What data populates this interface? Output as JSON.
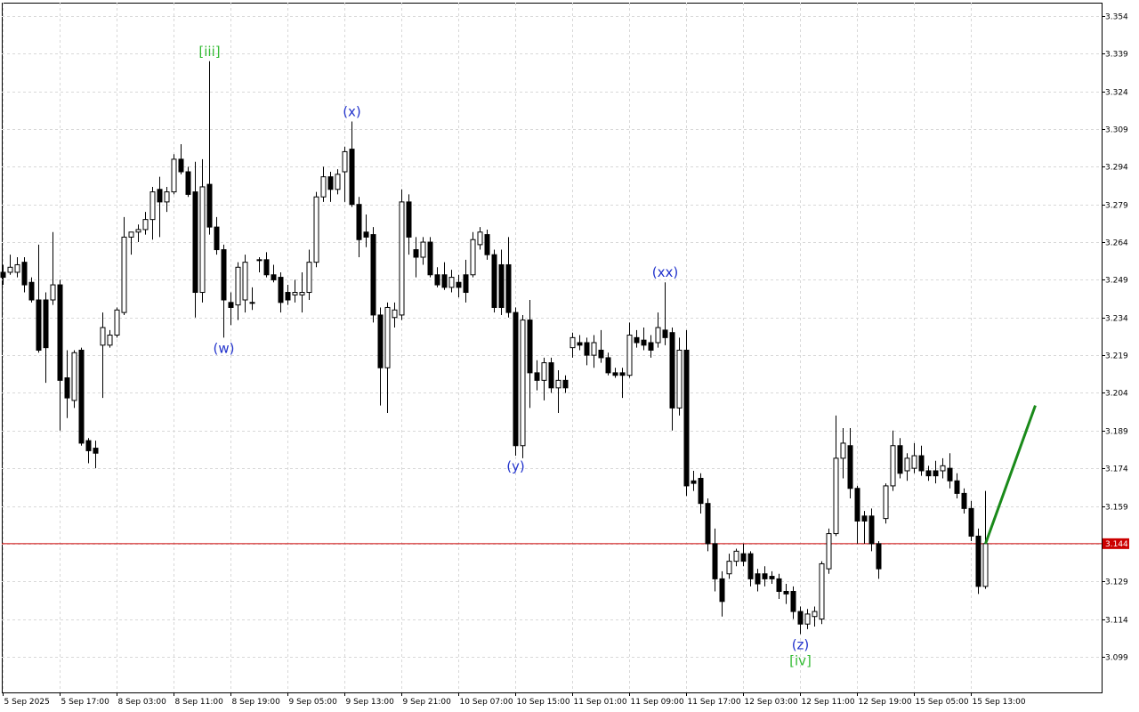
{
  "chart_data": {
    "type": "candlestick",
    "categories": [
      "5 Sep 2025",
      null,
      null,
      null,
      null,
      null,
      null,
      null,
      "5 Sep 17:00",
      null,
      null,
      null,
      null,
      null,
      null,
      null,
      "8 Sep 03:00",
      null,
      null,
      null,
      null,
      null,
      null,
      null,
      "8 Sep 11:00",
      null,
      null,
      null,
      null,
      null,
      null,
      null,
      "8 Sep 19:00",
      null,
      null,
      null,
      null,
      null,
      null,
      null,
      "9 Sep 05:00",
      null,
      null,
      null,
      null,
      null,
      null,
      null,
      "9 Sep 13:00",
      null,
      null,
      null,
      null,
      null,
      null,
      null,
      "9 Sep 21:00",
      null,
      null,
      null,
      null,
      null,
      null,
      null,
      "10 Sep 07:00",
      null,
      null,
      null,
      null,
      null,
      null,
      null,
      "10 Sep 15:00",
      null,
      null,
      null,
      null,
      null,
      null,
      null,
      "11 Sep 01:00",
      null,
      null,
      null,
      null,
      null,
      null,
      null,
      "11 Sep 09:00",
      null,
      null,
      null,
      null,
      null,
      null,
      null,
      "11 Sep 17:00",
      null,
      null,
      null,
      null,
      null,
      null,
      null,
      "12 Sep 03:00",
      null,
      null,
      null,
      null,
      null,
      null,
      null,
      "12 Sep 11:00",
      null,
      null,
      null,
      null,
      null,
      null,
      null,
      "12 Sep 19:00",
      null,
      null,
      null,
      null,
      null,
      null,
      null,
      "15 Sep 05:00",
      null,
      null,
      null,
      null,
      null,
      null,
      null,
      "15 Sep 13:00",
      null,
      null
    ],
    "candles": [
      [
        3.252,
        3.255,
        3.247,
        3.25
      ],
      [
        3.252,
        3.259,
        3.251,
        3.254
      ],
      [
        3.252,
        3.258,
        3.25,
        3.255
      ],
      [
        3.256,
        3.258,
        3.244,
        3.247
      ],
      [
        3.248,
        3.25,
        3.24,
        3.241
      ],
      [
        3.241,
        3.263,
        3.22,
        3.221
      ],
      [
        3.241,
        3.244,
        3.208,
        3.222
      ],
      [
        3.241,
        3.268,
        3.239,
        3.247
      ],
      [
        3.247,
        3.249,
        3.189,
        3.209
      ],
      [
        3.21,
        3.221,
        3.194,
        3.202
      ],
      [
        3.201,
        3.221,
        3.198,
        3.22
      ],
      [
        3.221,
        3.222,
        3.183,
        3.184
      ],
      [
        3.185,
        3.186,
        3.176,
        3.181
      ],
      [
        3.182,
        3.185,
        3.174,
        3.18
      ],
      [
        3.223,
        3.236,
        3.202,
        3.23
      ],
      [
        3.223,
        3.229,
        3.222,
        3.227
      ],
      [
        3.227,
        3.238,
        3.226,
        3.237
      ],
      [
        3.236,
        3.274,
        3.235,
        3.266
      ],
      [
        3.266,
        3.268,
        3.259,
        3.268
      ],
      [
        3.268,
        3.271,
        3.264,
        3.269
      ],
      [
        3.269,
        3.276,
        3.267,
        3.273
      ],
      [
        3.273,
        3.286,
        3.265,
        3.284
      ],
      [
        3.285,
        3.29,
        3.266,
        3.28
      ],
      [
        3.28,
        3.286,
        3.276,
        3.284
      ],
      [
        3.284,
        3.299,
        3.283,
        3.297
      ],
      [
        3.297,
        3.303,
        3.291,
        3.292
      ],
      [
        3.292,
        3.294,
        3.282,
        3.283
      ],
      [
        3.284,
        3.296,
        3.234,
        3.244
      ],
      [
        3.244,
        3.297,
        3.24,
        3.286
      ],
      [
        3.287,
        3.336,
        3.267,
        3.27
      ],
      [
        3.27,
        3.274,
        3.259,
        3.261
      ],
      [
        3.261,
        3.263,
        3.226,
        3.241
      ],
      [
        3.24,
        3.244,
        3.231,
        3.238
      ],
      [
        3.239,
        3.256,
        3.233,
        3.254
      ],
      [
        3.241,
        3.259,
        3.236,
        3.256
      ],
      [
        3.24,
        3.246,
        3.237,
        3.24
      ],
      [
        3.257,
        3.258,
        3.252,
        3.257
      ],
      [
        3.257,
        3.26,
        3.25,
        3.251
      ],
      [
        3.251,
        3.255,
        3.248,
        3.249
      ],
      [
        3.25,
        3.252,
        3.236,
        3.24
      ],
      [
        3.244,
        3.247,
        3.239,
        3.241
      ],
      [
        3.243,
        3.249,
        3.24,
        3.244
      ],
      [
        3.243,
        3.252,
        3.236,
        3.244
      ],
      [
        3.244,
        3.261,
        3.241,
        3.256
      ],
      [
        3.256,
        3.284,
        3.254,
        3.282
      ],
      [
        3.282,
        3.294,
        3.28,
        3.29
      ],
      [
        3.29,
        3.292,
        3.28,
        3.285
      ],
      [
        3.285,
        3.293,
        3.283,
        3.291
      ],
      [
        3.292,
        3.302,
        3.28,
        3.3
      ],
      [
        3.301,
        3.312,
        3.278,
        3.279
      ],
      [
        3.279,
        3.282,
        3.258,
        3.265
      ],
      [
        3.268,
        3.275,
        3.262,
        3.266
      ],
      [
        3.267,
        3.27,
        3.232,
        3.235
      ],
      [
        3.235,
        3.238,
        3.199,
        3.214
      ],
      [
        3.214,
        3.24,
        3.196,
        3.238
      ],
      [
        3.234,
        3.24,
        3.23,
        3.237
      ],
      [
        3.235,
        3.285,
        3.233,
        3.28
      ],
      [
        3.28,
        3.283,
        3.259,
        3.266
      ],
      [
        3.261,
        3.266,
        3.25,
        3.258
      ],
      [
        3.258,
        3.266,
        3.255,
        3.264
      ],
      [
        3.264,
        3.266,
        3.25,
        3.251
      ],
      [
        3.251,
        3.254,
        3.246,
        3.247
      ],
      [
        3.251,
        3.256,
        3.245,
        3.246
      ],
      [
        3.246,
        3.253,
        3.244,
        3.25
      ],
      [
        3.248,
        3.251,
        3.242,
        3.246
      ],
      [
        3.251,
        3.257,
        3.24,
        3.244
      ],
      [
        3.251,
        3.268,
        3.25,
        3.265
      ],
      [
        3.263,
        3.27,
        3.261,
        3.268
      ],
      [
        3.267,
        3.269,
        3.257,
        3.259
      ],
      [
        3.259,
        3.261,
        3.236,
        3.238
      ],
      [
        3.255,
        3.261,
        3.235,
        3.238
      ],
      [
        3.255,
        3.266,
        3.234,
        3.236
      ],
      [
        3.236,
        3.238,
        3.179,
        3.183
      ],
      [
        3.183,
        3.235,
        3.178,
        3.233
      ],
      [
        3.233,
        3.241,
        3.198,
        3.212
      ],
      [
        3.212,
        3.217,
        3.205,
        3.209
      ],
      [
        3.209,
        3.218,
        3.201,
        3.216
      ],
      [
        3.216,
        3.218,
        3.204,
        3.206
      ],
      [
        3.206,
        3.213,
        3.196,
        3.209
      ],
      [
        3.209,
        3.211,
        3.204,
        3.206
      ],
      [
        3.222,
        3.228,
        3.218,
        3.226
      ],
      [
        3.224,
        3.227,
        3.221,
        3.223
      ],
      [
        3.224,
        3.226,
        3.215,
        3.219
      ],
      [
        3.219,
        3.227,
        3.214,
        3.224
      ],
      [
        3.221,
        3.229,
        3.216,
        3.218
      ],
      [
        3.218,
        3.22,
        3.211,
        3.212
      ],
      [
        3.212,
        3.214,
        3.21,
        3.211
      ],
      [
        3.212,
        3.214,
        3.202,
        3.211
      ],
      [
        3.211,
        3.232,
        3.21,
        3.227
      ],
      [
        3.226,
        3.229,
        3.222,
        3.224
      ],
      [
        3.225,
        3.23,
        3.221,
        3.223
      ],
      [
        3.224,
        3.227,
        3.218,
        3.221
      ],
      [
        3.224,
        3.236,
        3.222,
        3.23
      ],
      [
        3.229,
        3.248,
        3.223,
        3.226
      ],
      [
        3.228,
        3.23,
        3.189,
        3.198
      ],
      [
        3.198,
        3.226,
        3.195,
        3.221
      ],
      [
        3.221,
        3.229,
        3.163,
        3.167
      ],
      [
        3.169,
        3.173,
        3.165,
        3.168
      ],
      [
        3.17,
        3.172,
        3.156,
        3.16
      ],
      [
        3.16,
        3.162,
        3.141,
        3.144
      ],
      [
        3.144,
        3.15,
        3.125,
        3.13
      ],
      [
        3.13,
        3.133,
        3.115,
        3.121
      ],
      [
        3.132,
        3.14,
        3.13,
        3.137
      ],
      [
        3.137,
        3.142,
        3.135,
        3.141
      ],
      [
        3.14,
        3.144,
        3.135,
        3.137
      ],
      [
        3.14,
        3.141,
        3.127,
        3.13
      ],
      [
        3.132,
        3.134,
        3.125,
        3.128
      ],
      [
        3.132,
        3.135,
        3.127,
        3.13
      ],
      [
        3.131,
        3.133,
        3.128,
        3.13
      ],
      [
        3.13,
        3.132,
        3.122,
        3.125
      ],
      [
        3.125,
        3.128,
        3.12,
        3.124
      ],
      [
        3.125,
        3.127,
        3.114,
        3.117
      ],
      [
        3.117,
        3.119,
        3.108,
        3.112
      ],
      [
        3.112,
        3.118,
        3.11,
        3.116
      ],
      [
        3.115,
        3.119,
        3.111,
        3.117
      ],
      [
        3.114,
        3.137,
        3.112,
        3.136
      ],
      [
        3.134,
        3.15,
        3.132,
        3.148
      ],
      [
        3.148,
        3.195,
        3.147,
        3.178
      ],
      [
        3.178,
        3.19,
        3.17,
        3.184
      ],
      [
        3.183,
        3.19,
        3.162,
        3.166
      ],
      [
        3.166,
        3.167,
        3.144,
        3.153
      ],
      [
        3.155,
        3.157,
        3.144,
        3.153
      ],
      [
        3.155,
        3.158,
        3.141,
        3.144
      ],
      [
        3.144,
        3.145,
        3.13,
        3.134
      ],
      [
        3.154,
        3.168,
        3.152,
        3.167
      ],
      [
        3.167,
        3.189,
        3.165,
        3.183
      ],
      [
        3.183,
        3.186,
        3.17,
        3.172
      ],
      [
        3.173,
        3.18,
        3.169,
        3.178
      ],
      [
        3.174,
        3.184,
        3.172,
        3.179
      ],
      [
        3.179,
        3.183,
        3.171,
        3.173
      ],
      [
        3.173,
        3.175,
        3.169,
        3.171
      ],
      [
        3.173,
        3.177,
        3.168,
        3.171
      ],
      [
        3.173,
        3.178,
        3.17,
        3.175
      ],
      [
        3.174,
        3.18,
        3.166,
        3.169
      ],
      [
        3.169,
        3.172,
        3.162,
        3.164
      ],
      [
        3.164,
        3.166,
        3.156,
        3.158
      ],
      [
        3.158,
        3.161,
        3.145,
        3.147
      ],
      [
        3.147,
        3.15,
        3.124,
        3.127
      ],
      [
        3.127,
        3.165,
        3.126,
        3.144
      ]
    ],
    "up_color": "#ffffff",
    "down_color": "#000000",
    "wick_color": "#000000",
    "ylim": [
      3.0848,
      3.3593
    ],
    "yticks": [
      3.354,
      3.339,
      3.324,
      3.309,
      3.294,
      3.279,
      3.264,
      3.249,
      3.234,
      3.219,
      3.204,
      3.189,
      3.174,
      3.159,
      3.144,
      3.129,
      3.114,
      3.099
    ],
    "grid": true,
    "current_price": 3.144,
    "current_price_color": "#cc0000",
    "annotations": [
      {
        "text": "[iii]",
        "candle": 29,
        "side": "above",
        "color": "#33bb33"
      },
      {
        "text": "(w)",
        "candle": 31,
        "side": "below",
        "color": "#2233cc"
      },
      {
        "text": "(x)",
        "candle": 49,
        "side": "above",
        "color": "#2233cc"
      },
      {
        "text": "(y)",
        "candle": 72,
        "side": "below",
        "color": "#2233cc"
      },
      {
        "text": "(xx)",
        "candle": 93,
        "side": "above",
        "color": "#2233cc"
      },
      {
        "text": "(z)",
        "candle": 112,
        "side": "below",
        "color": "#2233cc"
      },
      {
        "text": "[iv]",
        "candle": 112,
        "side": "below",
        "color": "#33bb33"
      }
    ],
    "projection": {
      "color": "#1a8a1a",
      "x": [
        138,
        145
      ],
      "y": [
        3.144,
        3.199
      ]
    }
  }
}
